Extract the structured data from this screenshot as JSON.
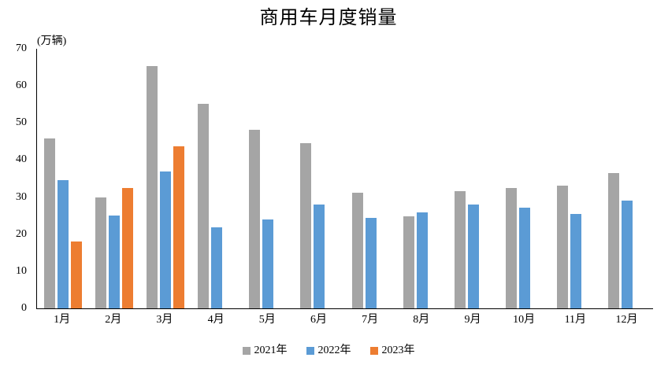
{
  "chart_data": {
    "type": "bar",
    "title": "商用车月度销量",
    "ylabel": "(万辆)",
    "xlabel": "",
    "categories": [
      "1月",
      "2月",
      "3月",
      "4月",
      "5月",
      "6月",
      "7月",
      "8月",
      "9月",
      "10月",
      "11月",
      "12月"
    ],
    "series": [
      {
        "key": "2021",
        "name": "2021年",
        "color": "#a5a5a5",
        "values": [
          45.9,
          29.9,
          65.3,
          55.1,
          48.2,
          44.5,
          31.2,
          24.8,
          31.7,
          32.4,
          33.0,
          36.4
        ]
      },
      {
        "key": "2022",
        "name": "2022年",
        "color": "#5b9bd5",
        "values": [
          34.5,
          25.0,
          37.0,
          21.8,
          23.9,
          28.1,
          24.5,
          25.9,
          27.9,
          27.2,
          25.4,
          29.1
        ]
      },
      {
        "key": "2023",
        "name": "2023年",
        "color": "#ed7d31",
        "values": [
          18.0,
          32.4,
          43.6,
          null,
          null,
          null,
          null,
          null,
          null,
          null,
          null,
          null
        ]
      }
    ],
    "ylim": [
      0,
      70
    ],
    "y_ticks": [
      0,
      10,
      20,
      30,
      40,
      50,
      60,
      70
    ],
    "grid": false,
    "legend_position": "bottom"
  }
}
